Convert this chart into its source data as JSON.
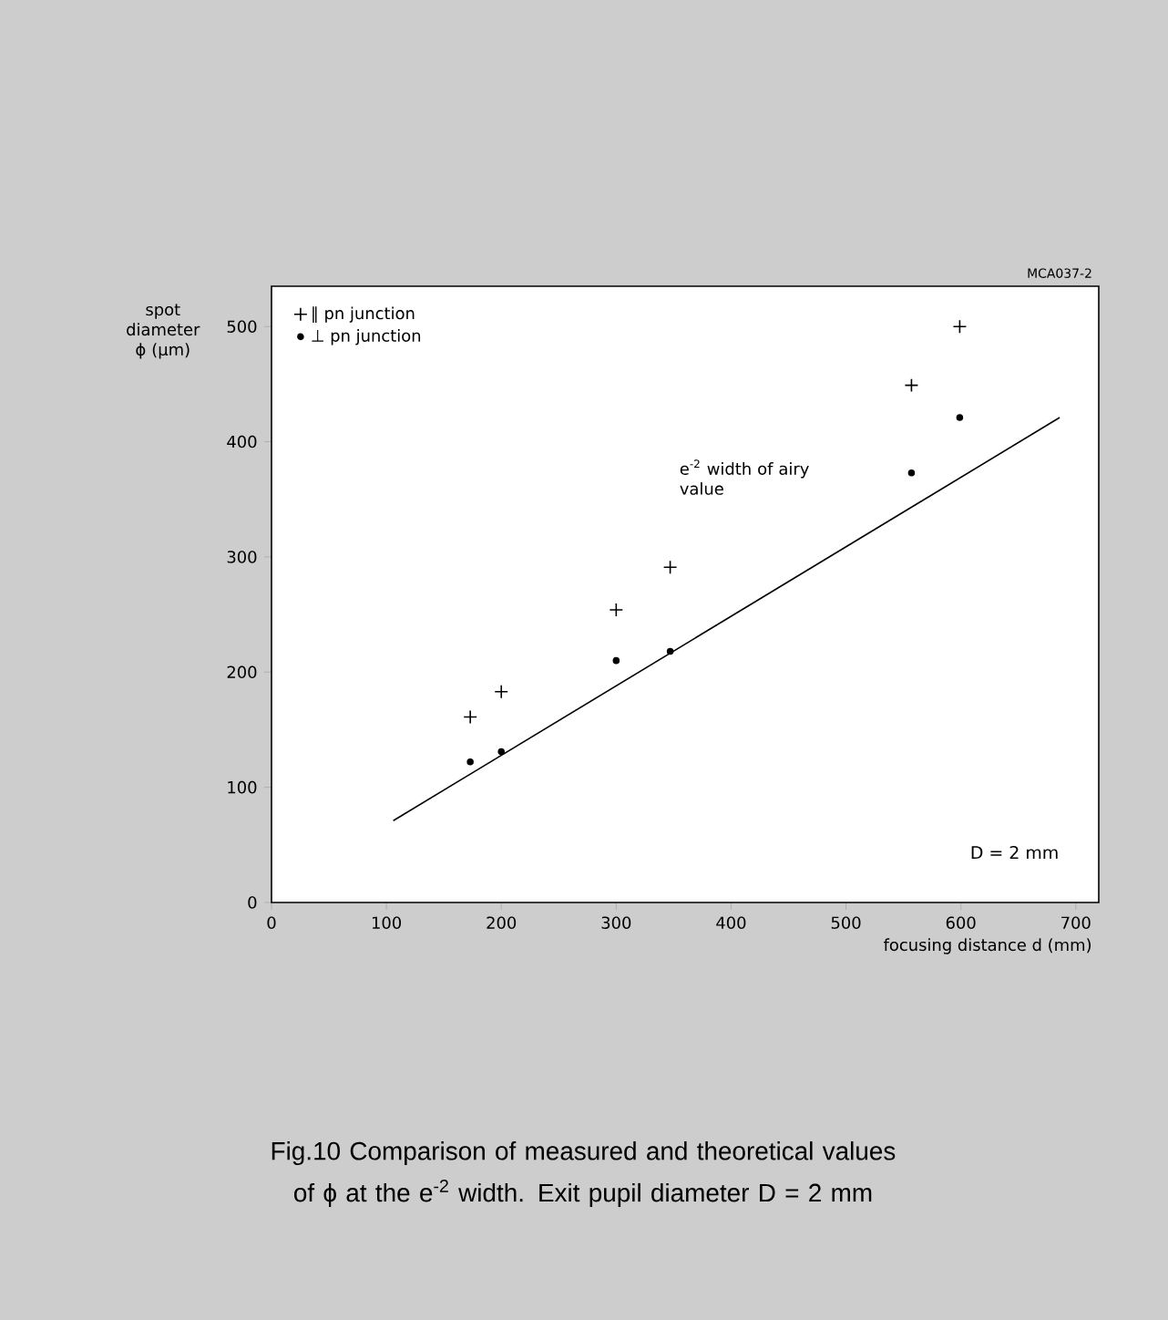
{
  "chart_data": {
    "type": "scatter",
    "xlabel": "focusing distance d (mm)",
    "ylabel": "spot diameter ϕ (μm)",
    "xlim": [
      0,
      720
    ],
    "ylim": [
      0,
      535
    ],
    "xticks": [
      0,
      100,
      200,
      300,
      400,
      500,
      600,
      700
    ],
    "yticks": [
      0,
      100,
      200,
      300,
      400,
      500
    ],
    "grid": false,
    "legend": "top left",
    "series": [
      {
        "name": "∥ pn junction",
        "color": "#000000",
        "marker": "cross",
        "x": [
          173,
          200,
          300,
          347,
          557,
          599
        ],
        "values": [
          161,
          183,
          254,
          291,
          449,
          500
        ]
      },
      {
        "name": "⊥ pn junction",
        "color": "#000000",
        "marker": "circle",
        "x": [
          173,
          200,
          300,
          347,
          557,
          599
        ],
        "values": [
          122,
          131,
          210,
          218,
          373,
          421
        ]
      },
      {
        "type": "line",
        "color": "#000000",
        "marker": "none",
        "x": [
          106,
          686
        ],
        "values": [
          71,
          421
        ]
      }
    ],
    "annotations": [
      "MCA037-2",
      "e$^{-2}$ width of airy value",
      "D = 2 mm",
      "Fig.10  Comparison of measured and theoretical values of ϕ at the e$^{-2}$ width. Exit pupil diameter D = 2 mm"
    ]
  }
}
